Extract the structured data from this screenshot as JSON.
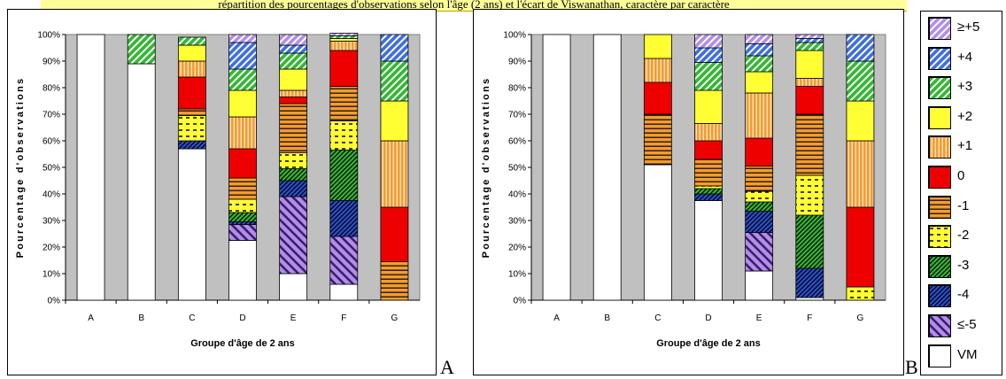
{
  "banner_text": "répartition des pourcentages d'observations selon l'âge (2 ans) et l'écart de Viswanathan, caractère par caractère",
  "panel_letters": [
    "A",
    "B"
  ],
  "legend": {
    "items": [
      {
        "key": "pp5",
        "label": "≥+5"
      },
      {
        "key": "p4",
        "label": "+4"
      },
      {
        "key": "p3",
        "label": "+3"
      },
      {
        "key": "p2",
        "label": "+2"
      },
      {
        "key": "p1",
        "label": "+1"
      },
      {
        "key": "z0",
        "label": "0"
      },
      {
        "key": "m1",
        "label": "-1"
      },
      {
        "key": "m2",
        "label": "-2"
      },
      {
        "key": "m3",
        "label": "-3"
      },
      {
        "key": "m4",
        "label": "-4"
      },
      {
        "key": "mm5",
        "label": "≤-5"
      },
      {
        "key": "vm",
        "label": "VM"
      }
    ]
  },
  "styles": {
    "vm": {
      "color": "#ffffff",
      "pattern": "none"
    },
    "mm5": {
      "color": "#b28ee8",
      "pattern": "wide-diagonal"
    },
    "m4": {
      "color": "#2a4fcf",
      "pattern": "dense-diagonal"
    },
    "m3": {
      "color": "#33b833",
      "pattern": "dense-diagonal"
    },
    "m2": {
      "color": "#ffff33",
      "pattern": "dashes"
    },
    "m1": {
      "color": "#f39c2e",
      "pattern": "horizontal"
    },
    "z0": {
      "color": "#ee0000",
      "pattern": "none"
    },
    "p1": {
      "color": "#f39c2e",
      "pattern": "vertical"
    },
    "p2": {
      "color": "#ffff33",
      "pattern": "none"
    },
    "p3": {
      "color": "#33b833",
      "pattern": "diagonal"
    },
    "p4": {
      "color": "#3f6fe0",
      "pattern": "diagonal"
    },
    "pp5": {
      "color": "#b28ee8",
      "pattern": "diagonal"
    }
  },
  "chart_data": [
    {
      "type": "bar",
      "stacked": true,
      "panel": "A",
      "xlabel": "Groupe d'âge de 2 ans",
      "ylabel": "Pourcentage d'observations",
      "ylim": [
        0,
        100
      ],
      "yticks": [
        "0%",
        "10%",
        "20%",
        "30%",
        "40%",
        "50%",
        "60%",
        "70%",
        "80%",
        "90%",
        "100%"
      ],
      "categories": [
        "A",
        "B",
        "C",
        "D",
        "E",
        "F",
        "G"
      ],
      "series": [
        {
          "name": "VM",
          "key": "vm",
          "values": [
            100,
            89,
            57,
            22.5,
            10,
            6,
            0
          ]
        },
        {
          "name": "≤-5",
          "key": "mm5",
          "values": [
            0,
            0,
            0,
            6,
            29,
            18,
            0
          ]
        },
        {
          "name": "-4",
          "key": "m4",
          "values": [
            0,
            0,
            3,
            1,
            6,
            13.5,
            0
          ]
        },
        {
          "name": "-3",
          "key": "m3",
          "values": [
            0,
            0,
            0,
            3.5,
            4.5,
            19,
            0
          ]
        },
        {
          "name": "-2",
          "key": "m2",
          "values": [
            0,
            0,
            9.5,
            5,
            6,
            11,
            0
          ]
        },
        {
          "name": "-1",
          "key": "m1",
          "values": [
            0,
            0,
            2.5,
            8,
            18.5,
            13,
            14.5
          ]
        },
        {
          "name": "0",
          "key": "z0",
          "values": [
            0,
            0,
            12,
            11,
            2.5,
            13.5,
            20.5
          ]
        },
        {
          "name": "+1",
          "key": "p1",
          "values": [
            0,
            0,
            6,
            12,
            2.5,
            3.5,
            25
          ]
        },
        {
          "name": "+2",
          "key": "p2",
          "values": [
            0,
            0,
            6,
            10,
            8,
            1,
            15
          ]
        },
        {
          "name": "+3",
          "key": "p3",
          "values": [
            0,
            11,
            3,
            8,
            6,
            1,
            15
          ]
        },
        {
          "name": "+4",
          "key": "p4",
          "values": [
            0,
            0,
            0,
            10,
            3,
            0,
            10
          ]
        },
        {
          "name": "≥+5",
          "key": "pp5",
          "values": [
            0,
            0,
            0,
            3,
            4,
            1,
            0
          ]
        }
      ]
    },
    {
      "type": "bar",
      "stacked": true,
      "panel": "B",
      "xlabel": "Groupe d'âge de 2 ans",
      "ylabel": "Pourcentage d'observations",
      "ylim": [
        0,
        100
      ],
      "yticks": [
        "0%",
        "10%",
        "20%",
        "30%",
        "40%",
        "50%",
        "60%",
        "70%",
        "80%",
        "90%",
        "100%"
      ],
      "categories": [
        "A",
        "B",
        "C",
        "D",
        "E",
        "F",
        "G"
      ],
      "series": [
        {
          "name": "VM",
          "key": "vm",
          "values": [
            100,
            100,
            51,
            37.5,
            11,
            1,
            0
          ]
        },
        {
          "name": "≤-5",
          "key": "mm5",
          "values": [
            0,
            0,
            0,
            0,
            14.5,
            0,
            0
          ]
        },
        {
          "name": "-4",
          "key": "m4",
          "values": [
            0,
            0,
            0,
            2.5,
            8,
            11,
            0
          ]
        },
        {
          "name": "-3",
          "key": "m3",
          "values": [
            0,
            0,
            0,
            2,
            3.5,
            20,
            0
          ]
        },
        {
          "name": "-2",
          "key": "m2",
          "values": [
            0,
            0,
            0,
            1,
            4,
            15,
            5
          ]
        },
        {
          "name": "-1",
          "key": "m1",
          "values": [
            0,
            0,
            19,
            10,
            9.5,
            23,
            0
          ]
        },
        {
          "name": "0",
          "key": "z0",
          "values": [
            0,
            0,
            12,
            7,
            10.5,
            10.5,
            30
          ]
        },
        {
          "name": "+1",
          "key": "p1",
          "values": [
            0,
            0,
            9,
            6.5,
            17,
            3,
            25
          ]
        },
        {
          "name": "+2",
          "key": "p2",
          "values": [
            0,
            0,
            9,
            12.5,
            8,
            10.5,
            15
          ]
        },
        {
          "name": "+3",
          "key": "p3",
          "values": [
            0,
            0,
            0,
            10.5,
            6,
            3,
            15
          ]
        },
        {
          "name": "+4",
          "key": "p4",
          "values": [
            0,
            0,
            0,
            5.5,
            4.5,
            1.5,
            10
          ]
        },
        {
          "name": "≥+5",
          "key": "pp5",
          "values": [
            0,
            0,
            0,
            5,
            3.5,
            1.5,
            0
          ]
        }
      ]
    }
  ]
}
